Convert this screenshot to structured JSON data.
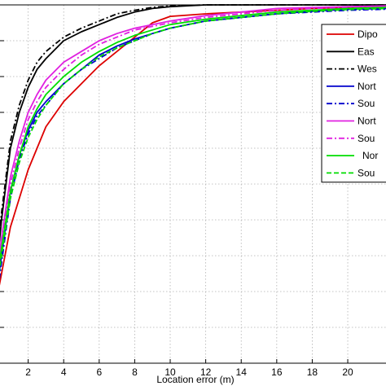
{
  "chart_data": {
    "type": "line",
    "xlabel": "Location error (m)",
    "ylabel": "",
    "xlim": [
      0,
      22.2
    ],
    "ylim": [
      0,
      1.0
    ],
    "x_ticks": [
      2,
      4,
      6,
      8,
      10,
      12,
      14,
      16,
      18,
      20
    ],
    "grid": true,
    "legend_position": "top-right",
    "series": [
      {
        "name": "Dipo",
        "color": "#dd0000",
        "dash": "solid",
        "x": [
          0,
          0.5,
          1,
          1.5,
          2,
          2.5,
          3,
          4,
          5,
          6,
          7,
          8,
          9,
          10,
          12,
          14,
          16,
          18,
          20,
          22.2
        ],
        "y": [
          0.12,
          0.25,
          0.38,
          0.46,
          0.54,
          0.6,
          0.66,
          0.73,
          0.78,
          0.83,
          0.87,
          0.91,
          0.95,
          0.968,
          0.975,
          0.98,
          0.985,
          0.99,
          0.993,
          0.995
        ]
      },
      {
        "name": "Eas",
        "color": "#000000",
        "dash": "solid",
        "x": [
          0,
          0.5,
          1,
          1.5,
          2,
          2.5,
          3,
          4,
          5,
          6,
          7,
          8,
          9,
          10,
          12,
          14,
          16,
          22.2
        ],
        "y": [
          0.15,
          0.4,
          0.6,
          0.7,
          0.77,
          0.82,
          0.85,
          0.9,
          0.925,
          0.945,
          0.965,
          0.98,
          0.99,
          0.995,
          1.0,
          1.0,
          1.0,
          1.0
        ]
      },
      {
        "name": "Wes",
        "color": "#000000",
        "dash": "dashdot",
        "x": [
          0,
          0.5,
          1,
          1.5,
          2,
          2.5,
          3,
          4,
          5,
          6,
          7,
          8,
          9,
          10,
          12,
          14,
          22.2
        ],
        "y": [
          0.18,
          0.42,
          0.62,
          0.72,
          0.79,
          0.84,
          0.87,
          0.91,
          0.935,
          0.955,
          0.975,
          0.985,
          0.993,
          0.997,
          1.0,
          1.0,
          1.0
        ]
      },
      {
        "name": "Nort",
        "color": "#0000cc",
        "dash": "solid",
        "x": [
          0,
          0.5,
          1,
          1.5,
          2,
          2.5,
          3,
          4,
          5,
          6,
          7,
          8,
          9,
          10,
          12,
          14,
          16,
          18,
          20,
          22.2
        ],
        "y": [
          0.12,
          0.3,
          0.48,
          0.58,
          0.65,
          0.7,
          0.73,
          0.78,
          0.82,
          0.86,
          0.885,
          0.905,
          0.92,
          0.935,
          0.955,
          0.965,
          0.975,
          0.982,
          0.988,
          0.99
        ]
      },
      {
        "name": "Sou",
        "color": "#0000cc",
        "dash": "dashdot",
        "x": [
          0,
          0.5,
          1,
          1.5,
          2,
          2.5,
          3,
          4,
          5,
          6,
          7,
          8,
          9,
          10,
          12,
          14,
          16,
          18,
          20,
          22.2
        ],
        "y": [
          0.1,
          0.28,
          0.46,
          0.57,
          0.64,
          0.69,
          0.72,
          0.78,
          0.82,
          0.85,
          0.88,
          0.9,
          0.92,
          0.935,
          0.955,
          0.965,
          0.975,
          0.98,
          0.985,
          0.988
        ]
      },
      {
        "name": "Nort",
        "color": "#e020e0",
        "dash": "solid",
        "x": [
          0,
          0.5,
          1,
          1.5,
          2,
          2.5,
          3,
          4,
          5,
          6,
          7,
          8,
          9,
          10,
          12,
          14,
          16,
          18,
          20,
          22.2
        ],
        "y": [
          0.15,
          0.35,
          0.52,
          0.62,
          0.7,
          0.75,
          0.79,
          0.84,
          0.87,
          0.9,
          0.92,
          0.935,
          0.945,
          0.955,
          0.97,
          0.98,
          0.99,
          0.993,
          0.995,
          0.997
        ]
      },
      {
        "name": "Sou",
        "color": "#e020e0",
        "dash": "dashdot",
        "x": [
          0,
          0.5,
          1,
          1.5,
          2,
          2.5,
          3,
          4,
          5,
          6,
          7,
          8,
          9,
          10,
          12,
          14,
          16,
          18,
          20,
          22.2
        ],
        "y": [
          0.14,
          0.33,
          0.5,
          0.6,
          0.68,
          0.73,
          0.77,
          0.82,
          0.86,
          0.89,
          0.91,
          0.93,
          0.94,
          0.95,
          0.965,
          0.975,
          0.985,
          0.99,
          0.993,
          0.995
        ]
      },
      {
        "name": "Nor",
        "color": "#00dd00",
        "dash": "solid",
        "x": [
          0,
          0.5,
          1,
          1.5,
          2,
          2.5,
          3,
          4,
          5,
          6,
          7,
          8,
          9,
          10,
          12,
          14,
          16,
          18,
          20,
          22.2
        ],
        "y": [
          0.16,
          0.32,
          0.48,
          0.58,
          0.66,
          0.71,
          0.75,
          0.8,
          0.84,
          0.87,
          0.895,
          0.915,
          0.93,
          0.945,
          0.96,
          0.97,
          0.98,
          0.985,
          0.99,
          0.993
        ]
      },
      {
        "name": "Sou",
        "color": "#00dd00",
        "dash": "dashed",
        "x": [
          0,
          0.5,
          1,
          1.5,
          2,
          2.5,
          3,
          4,
          5,
          6,
          7,
          8,
          9,
          10,
          12,
          14,
          16,
          18,
          20,
          22.2
        ],
        "y": [
          0.13,
          0.3,
          0.46,
          0.56,
          0.63,
          0.68,
          0.72,
          0.78,
          0.82,
          0.855,
          0.88,
          0.9,
          0.92,
          0.935,
          0.955,
          0.965,
          0.975,
          0.982,
          0.987,
          0.99
        ]
      }
    ]
  }
}
